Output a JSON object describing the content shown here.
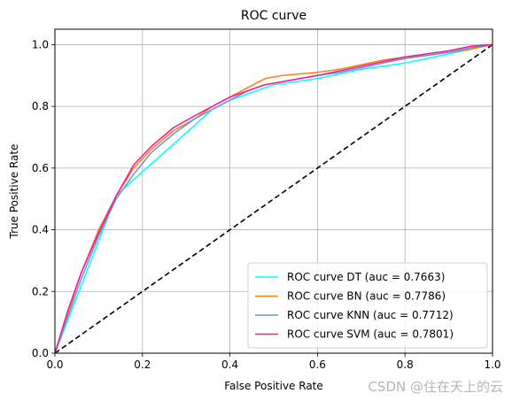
{
  "chart_data": {
    "type": "line",
    "title": "ROC curve",
    "xlabel": "False Positive Rate",
    "ylabel": "True Positive Rate",
    "xlim": [
      0.0,
      1.0
    ],
    "ylim": [
      0.0,
      1.05
    ],
    "xticks": [
      "0.0",
      "0.2",
      "0.4",
      "0.6",
      "0.8",
      "1.0"
    ],
    "yticks": [
      "0.0",
      "0.2",
      "0.4",
      "0.6",
      "0.8",
      "1.0"
    ],
    "grid": true,
    "legend_position": "lower-right",
    "series": [
      {
        "name": "ROC curve DT (auc = 0.7663)",
        "color": "#00ffff",
        "x": [
          0.0,
          0.14,
          0.17,
          0.36,
          0.4,
          0.5,
          0.6,
          0.7,
          0.8,
          0.9,
          1.0
        ],
        "y": [
          0.0,
          0.51,
          0.55,
          0.79,
          0.82,
          0.87,
          0.89,
          0.92,
          0.94,
          0.97,
          1.0
        ]
      },
      {
        "name": "ROC curve BN (auc = 0.7786)",
        "color": "#ff7f0e",
        "x": [
          0.0,
          0.03,
          0.06,
          0.1,
          0.14,
          0.18,
          0.22,
          0.27,
          0.32,
          0.36,
          0.4,
          0.44,
          0.48,
          0.52,
          0.56,
          0.6,
          0.65,
          0.7,
          0.75,
          0.8,
          0.85,
          0.9,
          0.95,
          1.0
        ],
        "y": [
          0.0,
          0.13,
          0.26,
          0.4,
          0.51,
          0.6,
          0.66,
          0.72,
          0.76,
          0.8,
          0.83,
          0.86,
          0.89,
          0.9,
          0.905,
          0.91,
          0.92,
          0.935,
          0.95,
          0.96,
          0.965,
          0.975,
          0.985,
          1.0
        ]
      },
      {
        "name": "ROC curve KNN (auc = 0.7712)",
        "color": "#6495ed",
        "x": [
          0.0,
          0.03,
          0.06,
          0.1,
          0.14,
          0.18,
          0.22,
          0.27,
          0.32,
          0.36,
          0.4,
          0.44,
          0.48,
          0.52,
          0.56,
          0.6,
          0.65,
          0.7,
          0.75,
          0.8,
          0.85,
          0.9,
          0.95,
          1.0
        ],
        "y": [
          0.0,
          0.12,
          0.24,
          0.38,
          0.5,
          0.58,
          0.65,
          0.71,
          0.76,
          0.79,
          0.82,
          0.85,
          0.87,
          0.88,
          0.89,
          0.9,
          0.91,
          0.925,
          0.94,
          0.955,
          0.965,
          0.975,
          0.99,
          1.0
        ]
      },
      {
        "name": "ROC curve SVM (auc = 0.7801)",
        "color": "#ff1493",
        "x": [
          0.0,
          0.03,
          0.06,
          0.1,
          0.14,
          0.18,
          0.22,
          0.27,
          0.32,
          0.36,
          0.4,
          0.44,
          0.48,
          0.52,
          0.56,
          0.6,
          0.65,
          0.7,
          0.75,
          0.8,
          0.85,
          0.9,
          0.95,
          1.0
        ],
        "y": [
          0.0,
          0.14,
          0.26,
          0.39,
          0.51,
          0.61,
          0.67,
          0.73,
          0.77,
          0.8,
          0.83,
          0.85,
          0.87,
          0.88,
          0.89,
          0.9,
          0.915,
          0.93,
          0.945,
          0.96,
          0.97,
          0.98,
          0.995,
          1.0
        ]
      }
    ],
    "reference_line": {
      "color": "#000000",
      "style": "dashed",
      "x": [
        0.0,
        1.0
      ],
      "y": [
        0.0,
        1.0
      ]
    }
  },
  "watermark": "CSDN @住在天上的云"
}
